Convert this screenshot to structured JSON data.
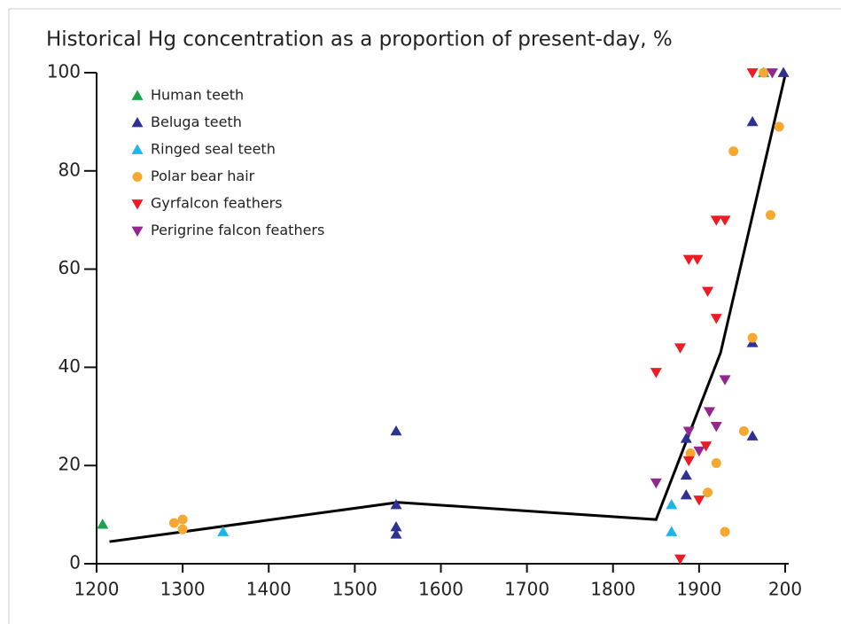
{
  "chart_data": {
    "type": "scatter",
    "title": "Historical Hg concentration as a proportion of present-day, %",
    "xlim": [
      1200,
      2000
    ],
    "ylim": [
      0,
      100
    ],
    "xticks": [
      1200,
      1300,
      1400,
      1500,
      1600,
      1700,
      1800,
      1900,
      {
        "value": 2000,
        "label": "200"
      }
    ],
    "yticks": [
      0,
      20,
      40,
      60,
      80,
      100
    ],
    "legend": "top-left",
    "series": [
      {
        "name": "Human teeth",
        "color": "#1aa34a",
        "marker": "triangle-up",
        "x": [
          1207,
          1975
        ],
        "values": [
          8,
          100
        ]
      },
      {
        "name": "Beluga teeth",
        "color": "#2e3192",
        "marker": "triangle-up",
        "x": [
          1548,
          1548,
          1548,
          1548,
          1885,
          1885,
          1885,
          1962,
          1962,
          1962,
          1998
        ],
        "values": [
          27,
          12,
          7.5,
          6,
          25.5,
          18,
          14,
          90,
          45,
          26,
          100
        ]
      },
      {
        "name": "Ringed seal teeth",
        "color": "#1fb4e8",
        "marker": "triangle-up",
        "x": [
          1347,
          1868,
          1868
        ],
        "values": [
          6.5,
          12,
          6.5
        ]
      },
      {
        "name": "Polar bear hair",
        "color": "#f7a831",
        "marker": "circle",
        "x": [
          1290,
          1300,
          1300,
          1890,
          1910,
          1920,
          1930,
          1940,
          1952,
          1962,
          1975,
          1983,
          1993
        ],
        "values": [
          8.3,
          9,
          7,
          22.5,
          14.5,
          20.5,
          6.5,
          84,
          27,
          46,
          100,
          71,
          89
        ]
      },
      {
        "name": "Gyrfalcon feathers",
        "color": "#ed1c24",
        "marker": "triangle-down",
        "x": [
          1850,
          1878,
          1878,
          1888,
          1898,
          1888,
          1900,
          1908,
          1910,
          1920,
          1920,
          1930,
          1962
        ],
        "values": [
          39,
          44,
          1,
          62,
          62,
          21,
          13,
          24,
          55.5,
          50,
          70,
          70,
          100
        ]
      },
      {
        "name": "Perigrine falcon feathers",
        "color": "#92278f",
        "marker": "triangle-down",
        "x": [
          1850,
          1888,
          1900,
          1912,
          1920,
          1930,
          1985
        ],
        "values": [
          16.5,
          27,
          23,
          31,
          28,
          37.5,
          100
        ]
      }
    ],
    "trend": {
      "color": "#000000",
      "x": [
        1215,
        1300,
        1550,
        1850,
        1925,
        2000
      ],
      "values": [
        4.5,
        6.5,
        12.5,
        9,
        43,
        99.5
      ]
    }
  }
}
